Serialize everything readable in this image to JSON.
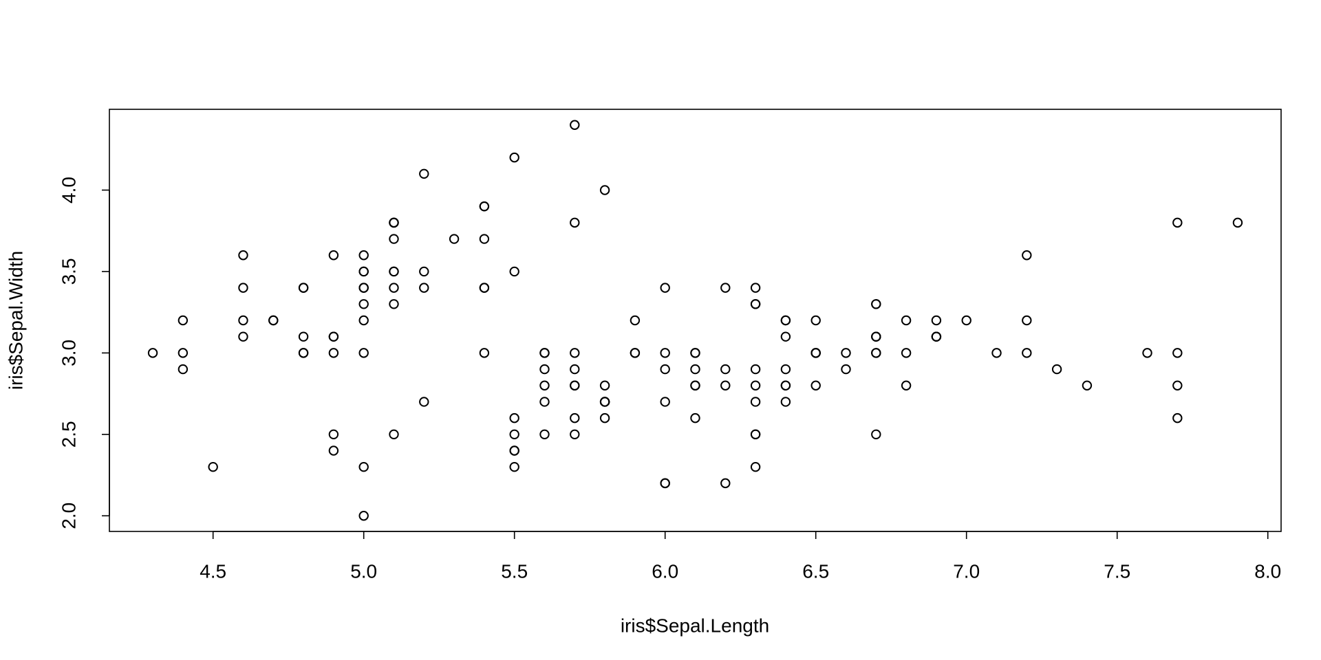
{
  "chart_data": {
    "type": "scatter",
    "xlabel": "iris$Sepal.Length",
    "ylabel": "iris$Sepal.Width",
    "color": "#000000",
    "xlim": [
      4.156,
      8.044
    ],
    "ylim": [
      1.904,
      4.496
    ],
    "xticks": [
      4.5,
      {
        "value": 5,
        "label": "5.0"
      },
      5.5,
      {
        "value": 6,
        "label": "6.0"
      },
      6.5,
      {
        "value": 7,
        "label": "7.0"
      },
      7.5,
      {
        "value": 8,
        "label": "8.0"
      }
    ],
    "yticks": [
      {
        "value": 2,
        "label": "2.0"
      },
      2.5,
      {
        "value": 3,
        "label": "3.0"
      },
      3.5,
      {
        "value": 4,
        "label": "4.0"
      }
    ],
    "x": [
      5.1,
      4.9,
      4.7,
      4.6,
      5.0,
      5.4,
      4.6,
      5.0,
      4.4,
      4.9,
      5.4,
      4.8,
      4.8,
      4.3,
      5.8,
      5.7,
      5.4,
      5.1,
      5.7,
      5.1,
      5.4,
      5.1,
      4.6,
      5.1,
      4.8,
      5.0,
      5.0,
      5.2,
      5.2,
      4.7,
      4.8,
      5.4,
      5.2,
      5.5,
      4.9,
      5.0,
      5.5,
      4.9,
      4.4,
      5.1,
      5.0,
      4.5,
      4.4,
      5.0,
      5.1,
      4.8,
      5.1,
      4.6,
      5.3,
      5.0,
      7.0,
      6.4,
      6.9,
      5.5,
      6.5,
      5.7,
      6.3,
      4.9,
      6.6,
      5.2,
      5.0,
      5.9,
      6.0,
      6.1,
      5.6,
      6.7,
      5.6,
      5.8,
      6.2,
      5.6,
      5.9,
      6.1,
      6.3,
      6.1,
      6.4,
      6.6,
      6.8,
      6.7,
      6.0,
      5.7,
      5.5,
      5.5,
      5.8,
      6.0,
      5.4,
      6.0,
      6.7,
      6.3,
      5.6,
      5.5,
      5.5,
      6.1,
      5.8,
      5.0,
      5.6,
      5.7,
      5.7,
      6.2,
      5.1,
      5.7,
      6.3,
      5.8,
      7.1,
      6.3,
      6.5,
      7.6,
      4.9,
      7.3,
      6.7,
      7.2,
      6.5,
      6.4,
      6.8,
      5.7,
      5.8,
      6.4,
      6.5,
      7.7,
      7.7,
      6.0,
      6.9,
      5.6,
      7.7,
      6.3,
      6.7,
      7.2,
      6.2,
      6.1,
      6.4,
      7.2,
      7.4,
      7.9,
      6.4,
      6.3,
      6.1,
      7.7,
      6.3,
      6.4,
      6.0,
      6.9,
      6.7,
      6.9,
      5.8,
      6.8,
      6.7,
      6.7,
      6.3,
      6.5,
      6.2,
      5.9
    ],
    "y": [
      3.5,
      3.0,
      3.2,
      3.1,
      3.6,
      3.9,
      3.4,
      3.4,
      2.9,
      3.1,
      3.7,
      3.4,
      3.0,
      3.0,
      4.0,
      4.4,
      3.9,
      3.5,
      3.8,
      3.8,
      3.4,
      3.7,
      3.6,
      3.3,
      3.4,
      3.0,
      3.4,
      3.5,
      3.4,
      3.2,
      3.1,
      3.4,
      4.1,
      4.2,
      3.1,
      3.2,
      3.5,
      3.6,
      3.0,
      3.4,
      3.5,
      2.3,
      3.2,
      3.5,
      3.8,
      3.0,
      3.8,
      3.2,
      3.7,
      3.3,
      3.2,
      3.2,
      3.1,
      2.3,
      2.8,
      2.8,
      3.3,
      2.4,
      2.9,
      2.7,
      2.0,
      3.0,
      2.2,
      2.9,
      2.9,
      3.1,
      3.0,
      2.7,
      2.2,
      2.5,
      3.2,
      2.8,
      2.5,
      2.8,
      2.9,
      3.0,
      2.8,
      3.0,
      2.9,
      2.6,
      2.4,
      2.4,
      2.7,
      2.7,
      3.0,
      3.4,
      3.1,
      2.3,
      3.0,
      2.5,
      2.6,
      3.0,
      2.6,
      2.3,
      2.7,
      3.0,
      2.9,
      2.9,
      2.5,
      2.8,
      3.3,
      2.7,
      3.0,
      2.9,
      3.0,
      3.0,
      2.5,
      2.9,
      2.5,
      3.6,
      3.2,
      2.7,
      3.0,
      2.5,
      2.8,
      3.2,
      3.0,
      3.8,
      2.6,
      2.2,
      3.2,
      2.8,
      2.8,
      2.7,
      3.3,
      3.2,
      2.8,
      3.0,
      2.8,
      3.0,
      2.8,
      3.8,
      2.8,
      2.8,
      2.6,
      3.0,
      3.4,
      3.1,
      3.0,
      3.1,
      3.1,
      3.1,
      2.7,
      3.2,
      3.3,
      3.0,
      2.5,
      3.0,
      3.4,
      3.0
    ]
  }
}
